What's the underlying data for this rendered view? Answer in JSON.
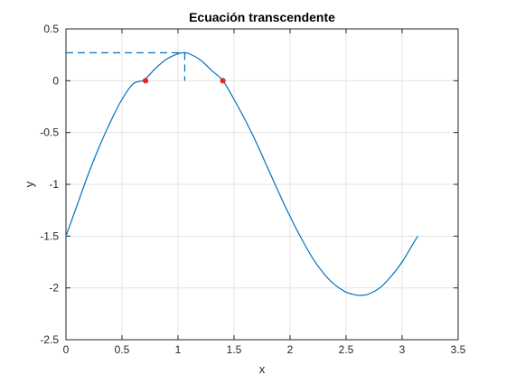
{
  "chart_data": {
    "type": "line",
    "title": "Ecuación transcendente",
    "xlabel": "x",
    "ylabel": "y",
    "xlim": [
      0,
      3.5
    ],
    "ylim": [
      -2.5,
      0.5
    ],
    "xticks": [
      0,
      0.5,
      1,
      1.5,
      2,
      2.5,
      3,
      3.5
    ],
    "xtick_labels": [
      "0",
      "0.5",
      "1",
      "1.5",
      "2",
      "2.5",
      "3",
      "3.5"
    ],
    "yticks": [
      0.5,
      0,
      -0.5,
      -1,
      -1.5,
      -2,
      -2.5
    ],
    "ytick_labels": [
      "0.5",
      "0",
      "-0.5",
      "-1",
      "-1.5",
      "-2",
      "-2.5"
    ],
    "grid": true,
    "series": [
      {
        "color": "#0072bd",
        "style": "solid",
        "x": [
          0,
          0.1,
          0.2,
          0.3,
          0.4,
          0.5,
          0.6,
          0.7,
          0.8,
          0.9,
          1.0,
          1.05,
          1.1,
          1.2,
          1.3,
          1.4,
          1.5,
          1.6,
          1.7,
          1.8,
          1.9,
          2.0,
          2.1,
          2.2,
          2.3,
          2.4,
          2.5,
          2.6,
          2.65,
          2.7,
          2.8,
          2.9,
          3.0,
          3.1,
          3.14
        ],
        "y": [
          -1.5,
          -1.2,
          -0.9,
          -0.63,
          -0.39,
          -0.18,
          -0.03,
          0.01,
          0.12,
          0.21,
          0.26,
          0.27,
          0.26,
          0.2,
          0.1,
          0.0,
          -0.18,
          -0.38,
          -0.6,
          -0.84,
          -1.08,
          -1.31,
          -1.52,
          -1.71,
          -1.86,
          -1.97,
          -2.04,
          -2.07,
          -2.07,
          -2.06,
          -2.0,
          -1.89,
          -1.75,
          -1.57,
          -1.5
        ]
      }
    ],
    "markers": {
      "color": "#e8262a",
      "points": [
        {
          "x": 0.71,
          "y": 0
        },
        {
          "x": 1.4,
          "y": 0
        }
      ]
    },
    "reference_lines": {
      "color": "#0072bd",
      "style": "dashed",
      "max_point": {
        "x": 1.06,
        "y": 0.27
      }
    }
  }
}
